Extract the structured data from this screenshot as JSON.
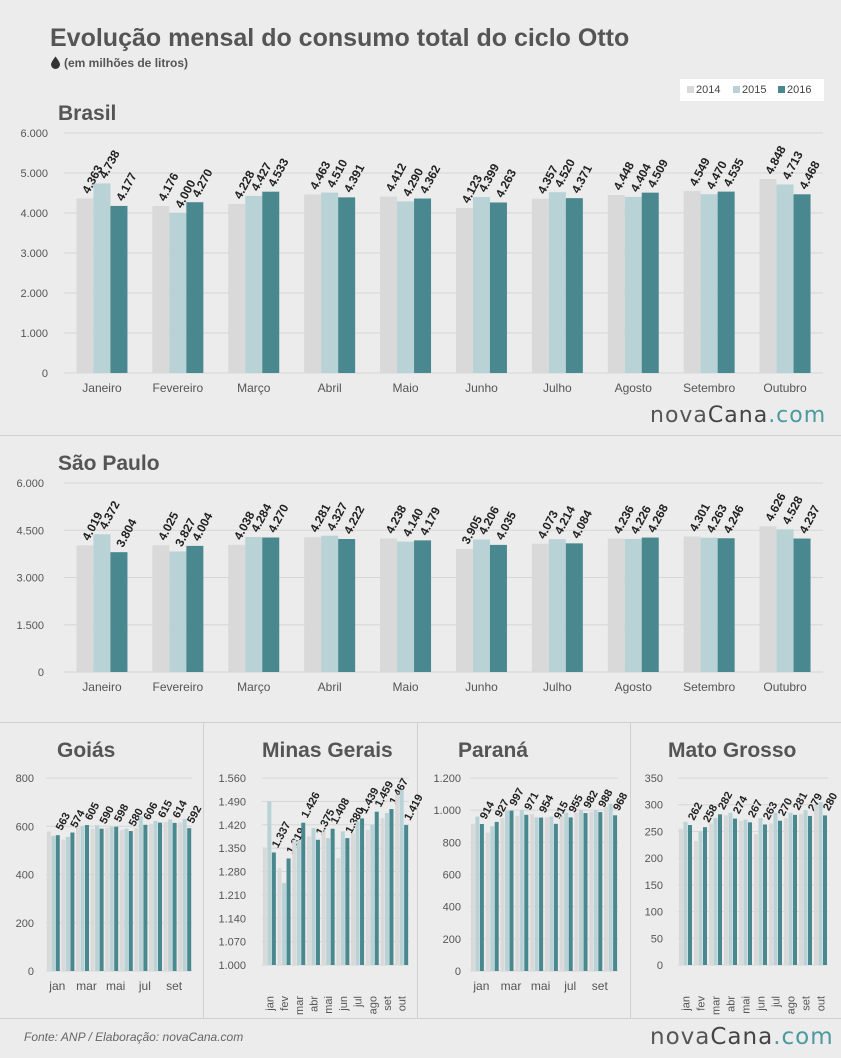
{
  "header": {
    "title": "Evolução mensal do consumo total do ciclo Otto",
    "subtitle": "(em milhões de litros)",
    "subtitle_icon": "droplet-icon"
  },
  "legend": {
    "items": [
      "2014",
      "2015",
      "2016"
    ]
  },
  "colors": {
    "2014": "#d9d9d9",
    "2015": "#b8d2d6",
    "2016": "#4a8890"
  },
  "footer": {
    "source": "Fonte: ANP / Elaboração: novaCana.com"
  },
  "logo": {
    "part1": "nova",
    "part2": "Cana",
    "part3": ".com"
  },
  "chart_data": [
    {
      "type": "bar",
      "title": "Brasil",
      "categories": [
        "Janeiro",
        "Fevereiro",
        "Março",
        "Abril",
        "Maio",
        "Junho",
        "Julho",
        "Agosto",
        "Setembro",
        "Outubro"
      ],
      "series": [
        {
          "name": "2014",
          "values": [
            4363,
            4176,
            4228,
            4463,
            4412,
            4123,
            4357,
            4448,
            4549,
            4848
          ],
          "labels": [
            "4.363",
            "4.176",
            "4.228",
            "4.463",
            "4.412",
            "4.123",
            "4.357",
            "4.448",
            "4.549",
            "4.848"
          ]
        },
        {
          "name": "2015",
          "values": [
            4738,
            4000,
            4427,
            4510,
            4290,
            4399,
            4520,
            4404,
            4470,
            4713
          ],
          "labels": [
            "4.738",
            "4.000",
            "4.427",
            "4.510",
            "4.290",
            "4.399",
            "4.520",
            "4.404",
            "4.470",
            "4.713"
          ]
        },
        {
          "name": "2016",
          "values": [
            4177,
            4270,
            4533,
            4391,
            4362,
            4263,
            4371,
            4509,
            4535,
            4468
          ],
          "labels": [
            "4.177",
            "4.270",
            "4.533",
            "4.391",
            "4.362",
            "4.263",
            "4.371",
            "4.509",
            "4.535",
            "4.468"
          ]
        }
      ],
      "ylim": [
        0,
        6000
      ],
      "yticks": [
        0,
        1000,
        2000,
        3000,
        4000,
        5000,
        6000
      ],
      "ytick_labels": [
        "0",
        "1.000",
        "2.000",
        "3.000",
        "4.000",
        "5.000",
        "6.000"
      ],
      "grid": true,
      "legend": "top-right"
    },
    {
      "type": "bar",
      "title": "São Paulo",
      "categories": [
        "Janeiro",
        "Fevereiro",
        "Março",
        "Abril",
        "Maio",
        "Junho",
        "Julho",
        "Agosto",
        "Setembro",
        "Outubro"
      ],
      "series": [
        {
          "name": "2014",
          "values": [
            4019,
            4025,
            4038,
            4281,
            4238,
            3905,
            4073,
            4236,
            4301,
            4626
          ],
          "labels": [
            "4.019",
            "4.025",
            "4.038",
            "4.281",
            "4.238",
            "3.905",
            "4.073",
            "4.236",
            "4.301",
            "4.626"
          ]
        },
        {
          "name": "2015",
          "values": [
            4372,
            3827,
            4284,
            4327,
            4140,
            4206,
            4214,
            4226,
            4263,
            4528
          ],
          "labels": [
            "4.372",
            "3.827",
            "4.284",
            "4.327",
            "4.140",
            "4.206",
            "4.214",
            "4.226",
            "4.263",
            "4.528"
          ]
        },
        {
          "name": "2016",
          "values": [
            3804,
            4004,
            4270,
            4222,
            4179,
            4035,
            4084,
            4268,
            4246,
            4237
          ],
          "labels": [
            "3.804",
            "4.004",
            "4.270",
            "4.222",
            "4.179",
            "4.035",
            "4.084",
            "4.268",
            "4.246",
            "4.237"
          ]
        }
      ],
      "ylim": [
        0,
        6000
      ],
      "yticks": [
        0,
        1500,
        3000,
        4500,
        6000
      ],
      "ytick_labels": [
        "0",
        "1.500",
        "3.000",
        "4.500",
        "6.000"
      ],
      "grid": true
    },
    {
      "type": "bar",
      "title": "Goiás",
      "categories": [
        "jan",
        "fev",
        "mar",
        "abr",
        "mai",
        "jun",
        "jul",
        "ago",
        "set",
        "out"
      ],
      "xtick_labels": [
        "jan",
        "",
        "mar",
        "",
        "mai",
        "",
        "jul",
        "",
        "set",
        ""
      ],
      "series": [
        {
          "name": "2014",
          "values": [
            578,
            545,
            595,
            590,
            593,
            585,
            592,
            610,
            618,
            616
          ]
        },
        {
          "name": "2015",
          "values": [
            560,
            556,
            600,
            604,
            597,
            590,
            640,
            622,
            628,
            630
          ]
        },
        {
          "name": "2016",
          "values": [
            563,
            574,
            605,
            590,
            598,
            580,
            606,
            615,
            614,
            592
          ],
          "labels": [
            "563",
            "574",
            "605",
            "590",
            "598",
            "580",
            "606",
            "615",
            "614",
            "592"
          ]
        }
      ],
      "ylim": [
        0,
        800
      ],
      "yticks": [
        0,
        200,
        400,
        600,
        800
      ],
      "ytick_labels": [
        "0",
        "200",
        "400",
        "600",
        "800"
      ],
      "grid": true
    },
    {
      "type": "bar",
      "title": "Minas Gerais",
      "categories": [
        "jan",
        "fev",
        "mar",
        "abr",
        "mai",
        "jun",
        "jul",
        "ago",
        "set",
        "out"
      ],
      "xtick_labels": [
        "jan",
        "fev",
        "mar",
        "abr",
        "mai",
        "jun",
        "jul",
        "ago",
        "set",
        "out"
      ],
      "series": [
        {
          "name": "2014",
          "values": [
            1352,
            1290,
            1375,
            1385,
            1400,
            1320,
            1395,
            1405,
            1440,
            1510
          ]
        },
        {
          "name": "2015",
          "values": [
            1490,
            1245,
            1372,
            1410,
            1380,
            1400,
            1430,
            1420,
            1455,
            1525
          ]
        },
        {
          "name": "2016",
          "values": [
            1337,
            1319,
            1426,
            1375,
            1408,
            1380,
            1439,
            1459,
            1467,
            1419
          ],
          "labels": [
            "1.337",
            "1.319",
            "1.426",
            "1.375",
            "1.408",
            "1.380",
            "1.439",
            "1.459",
            "1.467",
            "1.419"
          ]
        }
      ],
      "ylim": [
        1000,
        1560
      ],
      "yticks": [
        1000,
        1070,
        1140,
        1210,
        1280,
        1350,
        1420,
        1490,
        1560
      ],
      "ytick_labels": [
        "1.000",
        "1.070",
        "1.140",
        "1.210",
        "1.280",
        "1.350",
        "1.420",
        "1.490",
        "1.560"
      ],
      "grid": true
    },
    {
      "type": "bar",
      "title": "Paraná",
      "categories": [
        "jan",
        "fev",
        "mar",
        "abr",
        "mai",
        "jun",
        "jul",
        "ago",
        "set",
        "out"
      ],
      "xtick_labels": [
        "jan",
        "",
        "mar",
        "",
        "mai",
        "",
        "jul",
        "",
        "set",
        ""
      ],
      "series": [
        {
          "name": "2014",
          "values": [
            915,
            860,
            950,
            965,
            975,
            955,
            960,
            985,
            990,
            1020
          ]
        },
        {
          "name": "2015",
          "values": [
            960,
            900,
            995,
            1000,
            955,
            960,
            985,
            1000,
            1000,
            1040
          ]
        },
        {
          "name": "2016",
          "values": [
            914,
            927,
            997,
            971,
            954,
            915,
            955,
            982,
            988,
            968
          ],
          "labels": [
            "914",
            "927",
            "997",
            "971",
            "954",
            "915",
            "955",
            "982",
            "988",
            "968"
          ]
        }
      ],
      "ylim": [
        0,
        1200
      ],
      "yticks": [
        0,
        200,
        400,
        600,
        800,
        1000,
        1200
      ],
      "ytick_labels": [
        "0",
        "200",
        "400",
        "600",
        "800",
        "1.000",
        "1.200"
      ],
      "grid": true
    },
    {
      "type": "bar",
      "title": "Mato Grosso",
      "categories": [
        "jan",
        "fev",
        "mar",
        "abr",
        "mai",
        "jun",
        "jul",
        "ago",
        "set",
        "out"
      ],
      "xtick_labels": [
        "jan",
        "fev",
        "mar",
        "abr",
        "mai",
        "jun",
        "jul",
        "ago",
        "set",
        "out"
      ],
      "series": [
        {
          "name": "2014",
          "values": [
            255,
            232,
            265,
            280,
            270,
            245,
            265,
            275,
            283,
            300
          ]
        },
        {
          "name": "2015",
          "values": [
            268,
            250,
            275,
            285,
            272,
            275,
            285,
            285,
            290,
            305
          ]
        },
        {
          "name": "2016",
          "values": [
            262,
            258,
            282,
            274,
            267,
            263,
            270,
            281,
            279,
            280
          ],
          "labels": [
            "262",
            "258",
            "282",
            "274",
            "267",
            "263",
            "270",
            "281",
            "279",
            "280"
          ]
        }
      ],
      "ylim": [
        0,
        350
      ],
      "yticks": [
        0,
        50,
        100,
        150,
        200,
        250,
        300,
        350
      ],
      "ytick_labels": [
        "0",
        "50",
        "100",
        "150",
        "200",
        "250",
        "300",
        "350"
      ],
      "grid": true
    }
  ]
}
